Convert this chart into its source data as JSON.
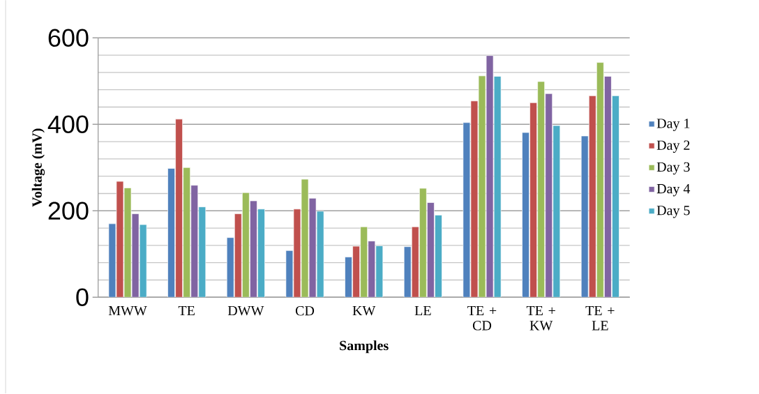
{
  "chart_data": {
    "type": "bar",
    "xlabel": "Samples",
    "ylabel": "Voltage (mV)",
    "categories": [
      "MWW",
      "TE",
      "DWW",
      "CD",
      "KW",
      "LE",
      "TE + CD",
      "TE + KW",
      "TE + LE"
    ],
    "series": [
      {
        "name": "Day 1",
        "color": "#4f81bd",
        "values": [
          170,
          298,
          138,
          108,
          93,
          117,
          404,
          381,
          373
        ]
      },
      {
        "name": "Day 2",
        "color": "#c0504d",
        "values": [
          268,
          412,
          193,
          204,
          118,
          163,
          454,
          450,
          466
        ]
      },
      {
        "name": "Day 3",
        "color": "#9bbb59",
        "values": [
          253,
          300,
          242,
          273,
          163,
          252,
          512,
          499,
          543
        ]
      },
      {
        "name": "Day 4",
        "color": "#8064a2",
        "values": [
          193,
          259,
          223,
          229,
          130,
          219,
          559,
          471,
          511
        ]
      },
      {
        "name": "Day 5",
        "color": "#4bacc6",
        "values": [
          168,
          209,
          204,
          199,
          119,
          190,
          511,
          397,
          466
        ]
      }
    ],
    "ylim": [
      0,
      600
    ],
    "yticks": [
      0,
      200,
      400,
      600
    ],
    "grid": "y",
    "legend": "right"
  }
}
